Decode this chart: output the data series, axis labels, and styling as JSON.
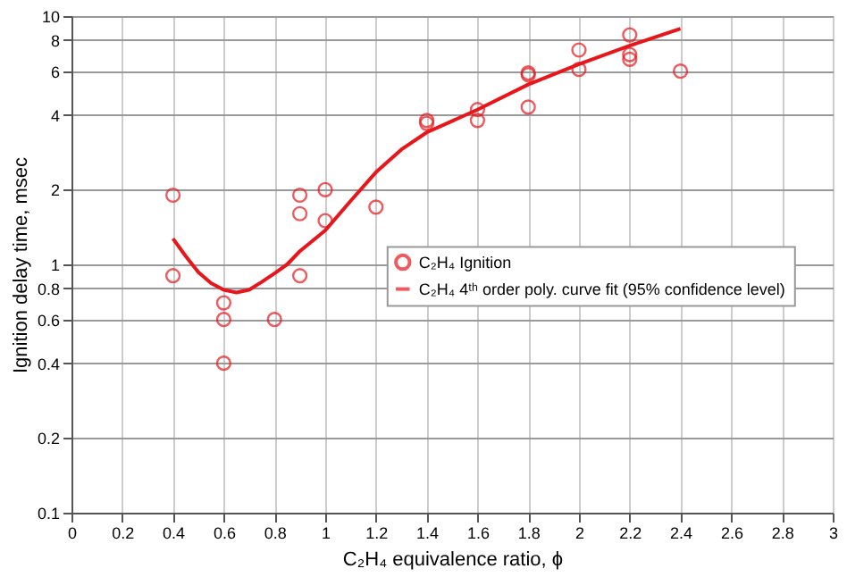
{
  "chart_data": {
    "type": "scatter",
    "xlabel": "C₂H₄ equivalence ratio, ϕ",
    "ylabel": "Ignition delay time, msec",
    "series": [
      {
        "name": "C₂H₄ Ignition",
        "color": "#e8161b",
        "marker": "circle",
        "x": [
          0.4,
          0.4,
          0.6,
          0.6,
          0.6,
          0.8,
          0.9,
          0.9,
          0.9,
          1.0,
          1.0,
          1.2,
          1.4,
          1.4,
          1.6,
          1.6,
          1.8,
          1.8,
          1.8,
          2.0,
          2.0,
          2.2,
          2.2,
          2.2,
          2.4
        ],
        "values": [
          1.9,
          0.9,
          0.7,
          0.6,
          0.4,
          0.6,
          1.9,
          1.6,
          0.9,
          2.0,
          1.5,
          1.7,
          3.8,
          3.7,
          4.2,
          3.8,
          5.9,
          5.8,
          4.3,
          7.3,
          6.1,
          8.4,
          7.0,
          6.7,
          6.0
        ]
      },
      {
        "name": "C₂H₄ 4ᵗʰ order poly. curve fit (95% confidence level)",
        "type": "line",
        "color": "#e8161b",
        "marker": "none",
        "line_style": "solid",
        "x": [
          0.4,
          0.45,
          0.5,
          0.55,
          0.6,
          0.65,
          0.7,
          0.75,
          0.8,
          0.85,
          0.9,
          1.0,
          1.1,
          1.2,
          1.3,
          1.4,
          1.6,
          1.8,
          2.0,
          2.2,
          2.4
        ],
        "values": [
          1.27,
          1.08,
          0.93,
          0.84,
          0.79,
          0.77,
          0.79,
          0.85,
          0.92,
          1.0,
          1.13,
          1.37,
          1.8,
          2.35,
          2.9,
          3.4,
          4.2,
          5.3,
          6.4,
          7.6,
          8.9
        ]
      }
    ],
    "xlim": [
      0,
      3
    ],
    "xticks": [
      0,
      0.2,
      0.4,
      0.6,
      0.8,
      1,
      1.2,
      1.4,
      1.6,
      1.8,
      2,
      2.2,
      2.4,
      2.6,
      2.8,
      3
    ],
    "ylim": [
      0.1,
      10
    ],
    "yticks": [
      0.1,
      0.2,
      0.4,
      0.6,
      0.8,
      1,
      2,
      4,
      6,
      8,
      10
    ],
    "log": "y",
    "grid": true,
    "legend": "right"
  }
}
